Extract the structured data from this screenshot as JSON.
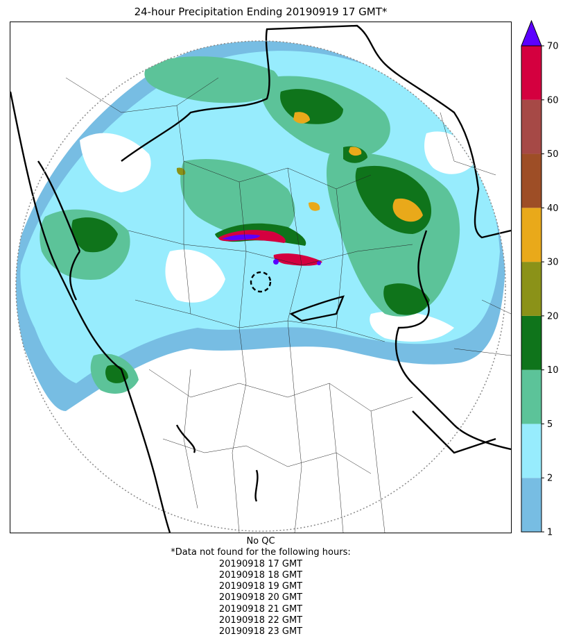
{
  "title": "24-hour Precipitation Ending 20190919 17 GMT*",
  "colorbar": {
    "ticks": [
      "1",
      "2",
      "5",
      "10",
      "20",
      "30",
      "40",
      "50",
      "60",
      "70"
    ],
    "colors": [
      "#77bde3",
      "#97ecfd",
      "#5cc399",
      "#0f741b",
      "#8b9218",
      "#e9a91a",
      "#9e4e26",
      "#a64946",
      "#d4003f"
    ],
    "extend_color": "#5b00ff"
  },
  "notes": {
    "qc": "No QC",
    "missing_header": "*Data not found for the following hours:",
    "missing_hours": [
      "20190918 17 GMT",
      "20190918 18 GMT",
      "20190918 19 GMT",
      "20190918 20 GMT",
      "20190918 21 GMT",
      "20190918 22 GMT",
      "20190918 23 GMT"
    ]
  },
  "icons": [
    "radar-range-ring-icon",
    "radar-site-marker-icon"
  ]
}
